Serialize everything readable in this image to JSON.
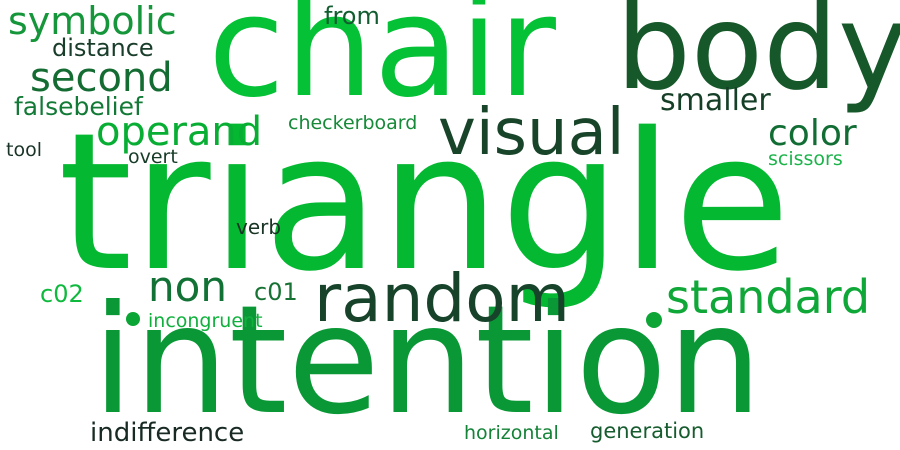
{
  "words": [
    {
      "key": "triangle",
      "text": "triangle",
      "color": "#05b832"
    },
    {
      "key": "intention",
      "text": "intention",
      "color": "#0a9836"
    },
    {
      "key": "chair",
      "text": "chair",
      "color": "#04c136"
    },
    {
      "key": "body",
      "text": "body",
      "color": "#17582b"
    },
    {
      "key": "visual",
      "text": "visual",
      "color": "#18452a"
    },
    {
      "key": "random",
      "text": "random",
      "color": "#17432a"
    },
    {
      "key": "standard",
      "text": "standard",
      "color": "#0fa737"
    },
    {
      "key": "operand",
      "text": "operand",
      "color": "#08ae33"
    },
    {
      "key": "second",
      "text": "second",
      "color": "#146c33"
    },
    {
      "key": "symbolic",
      "text": "symbolic",
      "color": "#15963a"
    },
    {
      "key": "smaller",
      "text": "smaller",
      "color": "#163f28"
    },
    {
      "key": "color",
      "text": "color",
      "color": "#116d33"
    },
    {
      "key": "non",
      "text": "non",
      "color": "#127236"
    },
    {
      "key": "c01",
      "text": "c01",
      "color": "#177334"
    },
    {
      "key": "c02",
      "text": "c02",
      "color": "#0fb93d"
    },
    {
      "key": "distance",
      "text": "distance",
      "color": "#193d2a"
    },
    {
      "key": "falsebelief",
      "text": "falsebelief",
      "color": "#127a36"
    },
    {
      "key": "from",
      "text": "from",
      "color": "#125d30"
    },
    {
      "key": "checkerboard",
      "text": "checkerboard",
      "color": "#168a39"
    },
    {
      "key": "tool",
      "text": "tool",
      "color": "#1a3327"
    },
    {
      "key": "overt",
      "text": "overt",
      "color": "#163b27"
    },
    {
      "key": "scissors",
      "text": "scissors",
      "color": "#1cb44a"
    },
    {
      "key": "verb",
      "text": "verb",
      "color": "#173424"
    },
    {
      "key": "incongruent",
      "text": "incongruent",
      "color": "#10b03c"
    },
    {
      "key": "indifference",
      "text": "indifference",
      "color": "#182a23"
    },
    {
      "key": "horizontal",
      "text": "horizontal",
      "color": "#148337"
    },
    {
      "key": "generation",
      "text": "generation",
      "color": "#175c2f"
    }
  ],
  "dots": [
    {
      "color": "#0ba535"
    },
    {
      "color": "#0ea537"
    }
  ]
}
